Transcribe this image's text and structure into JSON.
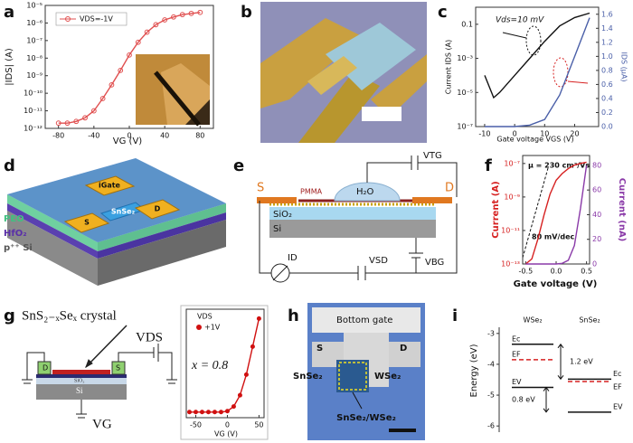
{
  "panels": [
    {
      "letter": "a",
      "chart": {
        "type": "line",
        "xlabel": "VG (V)",
        "ylabel": "|IDS| (A)",
        "x": [
          -80,
          -70,
          -60,
          -50,
          -40,
          -30,
          -20,
          -10,
          0,
          10,
          20,
          30,
          40,
          50,
          60,
          70,
          80
        ],
        "series": [
          {
            "name": "VDS=-1V",
            "color": "#e05050",
            "marker": "open-circle",
            "values": [
              2e-12,
              2e-12,
              2.5e-12,
              4e-12,
              1e-11,
              5e-11,
              3e-10,
              2e-09,
              1.5e-08,
              8e-08,
              3e-07,
              8e-07,
              1.5e-06,
              2.2e-06,
              3e-06,
              3.5e-06,
              4e-06
            ]
          }
        ],
        "xlim": [
          -95,
          95
        ],
        "xticks": [
          -80,
          -40,
          0,
          40,
          80
        ],
        "ylim": [
          1e-12,
          1e-05
        ],
        "log_y": true,
        "yticks": [
          {
            "value": 1e-12,
            "label": "10⁻¹²"
          },
          {
            "value": 1e-11,
            "label": "10⁻¹¹"
          },
          {
            "value": 1e-10,
            "label": "10⁻¹⁰"
          },
          {
            "value": 1e-09,
            "label": "10⁻⁹"
          },
          {
            "value": 1e-08,
            "label": "10⁻⁸"
          },
          {
            "value": 1e-07,
            "label": "10⁻⁷"
          },
          {
            "value": 1e-06,
            "label": "10⁻⁶"
          },
          {
            "value": 1e-05,
            "label": "10⁻⁵"
          }
        ],
        "legend": "upper left"
      }
    },
    {
      "letter": "b"
    },
    {
      "letter": "c",
      "chart": {
        "type": "line",
        "xlabel": "Gate voltage VGS (V)",
        "ylabel": "Current IDS (A)",
        "y2label": "IDS (μA)",
        "annotation": "Vds=10 mV",
        "x": [
          -10,
          -7,
          -5,
          0,
          5,
          10,
          15,
          20,
          25
        ],
        "series": [
          {
            "color": "#111111",
            "values": [
              0.0001,
              5e-06,
              1e-05,
              0.0001,
              0.001,
              0.01,
              0.08,
              0.25,
              0.45
            ]
          },
          {
            "color": "#4a5fa8",
            "axis": "y2",
            "values": [
              0,
              0,
              0,
              0,
              0.02,
              0.1,
              0.45,
              1.0,
              1.55
            ]
          }
        ],
        "xlim": [
          -13,
          28
        ],
        "xticks": [
          -10,
          0,
          10,
          20
        ],
        "ylim": [
          1e-07,
          1
        ],
        "log_y": true,
        "yticks": [
          {
            "value": 1e-07,
            "label": "10⁻⁷"
          },
          {
            "value": 1e-05,
            "label": "10⁻⁵"
          },
          {
            "value": 0.001,
            "label": "10⁻³"
          },
          0.1
        ],
        "y2lim": [
          0,
          1.7
        ],
        "y2ticks": [
          {
            "value": 0,
            "label": "0.0"
          },
          0.2,
          0.4,
          0.6,
          0.8,
          {
            "value": 1,
            "label": "1.0"
          },
          1.2,
          1.4,
          1.6
        ]
      }
    },
    {
      "letter": "d",
      "labels": [
        "PEO",
        "HfO₂",
        "p⁺⁺ Si",
        "iGate",
        "D",
        "S",
        "SnSe₂"
      ]
    },
    {
      "letter": "e",
      "labels": [
        "S",
        "D",
        "PMMA",
        "H₂O",
        "SiO₂",
        "Si",
        "VTG",
        "ID",
        "VSD",
        "VBG"
      ]
    },
    {
      "letter": "f",
      "chart": {
        "type": "line",
        "xlabel": "Gate voltage (V)",
        "ylabel": "Current (A)",
        "y2label": "Current (nA)",
        "annotations": [
          "μ = 230 cm²/Vs",
          "80 mV/dec"
        ],
        "x": [
          -0.5,
          -0.4,
          -0.3,
          -0.2,
          -0.1,
          0,
          0.1,
          0.2,
          0.3,
          0.4,
          0.5
        ],
        "series": [
          {
            "color": "#d62020",
            "values": [
              1e-13,
              2e-13,
              3e-12,
              8e-11,
              1.5e-09,
              1e-08,
              2.5e-08,
              5e-08,
              8e-08,
              1e-07,
              1.2e-07
            ]
          },
          {
            "color": "#8a3aa8",
            "axis": "y2",
            "values": [
              0,
              0,
              0,
              0,
              0,
              0,
              0.5,
              3,
              15,
              45,
              80
            ]
          }
        ],
        "xlim": [
          -0.55,
          0.55
        ],
        "xticks": [
          -0.5,
          {
            "value": 0,
            "label": "0.0"
          },
          0.5
        ],
        "ylim": [
          1e-13,
          3e-07
        ],
        "log_y": true,
        "yticks": [
          {
            "value": 1e-13,
            "label": "10⁻¹³"
          },
          {
            "value": 1e-11,
            "label": "10⁻¹¹"
          },
          {
            "value": 1e-09,
            "label": "10⁻⁹"
          },
          {
            "value": 1e-07,
            "label": "10⁻⁷"
          }
        ],
        "y2lim": [
          0,
          88
        ],
        "y2ticks": [
          0,
          20,
          40,
          60,
          80
        ]
      }
    },
    {
      "letter": "g",
      "labels": [
        "SnS₂₋ₓSeₓ crystal",
        "D",
        "S",
        "VDS",
        "SiO₂",
        "Si",
        "VG"
      ],
      "chart": {
        "type": "line",
        "xlabel": "VG (V)",
        "legend_title": "VDS",
        "annotation": "x = 0.8",
        "x": [
          -60,
          -50,
          -40,
          -30,
          -20,
          -10,
          0,
          10,
          20,
          30,
          40,
          50
        ],
        "series": [
          {
            "name": "+1V",
            "color": "#d01010",
            "marker": "dot",
            "values": [
              0,
              0,
              0,
              0,
              0,
              0,
              0.005,
              0.03,
              0.09,
              0.2,
              0.35,
              0.5
            ]
          }
        ],
        "xlim": [
          -65,
          58
        ],
        "xticks": [
          -50,
          0,
          50
        ],
        "ylim": [
          -0.03,
          0.55
        ],
        "legend": "upper left"
      }
    },
    {
      "letter": "h",
      "labels": [
        "Bottom gate",
        "S",
        "D",
        "SnSe₂",
        "WSe₂",
        "SnSe₂/WSe₂"
      ]
    },
    {
      "letter": "i",
      "band_diagram": {
        "ylabel": "Energy (eV)",
        "ylim": [
          -6.2,
          -2.8
        ],
        "yticks": [
          -3,
          -4,
          -5,
          -6
        ],
        "materials": [
          {
            "name": "WSe₂",
            "levels": [
              {
                "label": "Ec",
                "value": -3.35
              },
              {
                "label": "EF",
                "value": -3.85,
                "color": "#d62020"
              },
              {
                "label": "EV",
                "value": -4.75
              }
            ]
          },
          {
            "name": "SnSe₂",
            "levels": [
              {
                "label": "Ec",
                "value": -4.48
              },
              {
                "label": "EF",
                "value": -4.56,
                "color": "#d62020"
              },
              {
                "label": "EV",
                "value": -5.55
              }
            ]
          }
        ],
        "gaps": [
          "1.2 eV",
          "0.8 eV"
        ]
      }
    }
  ]
}
